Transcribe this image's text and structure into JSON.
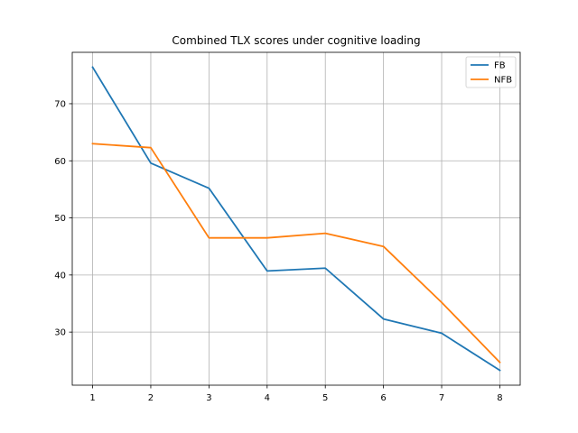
{
  "chart_data": {
    "type": "line",
    "title": "Combined TLX scores under cognitive loading",
    "xlabel": "",
    "ylabel": "",
    "x": [
      1,
      2,
      3,
      4,
      5,
      6,
      7,
      8
    ],
    "xlim": [
      0.65,
      8.35
    ],
    "ylim": [
      20.7,
      79.0
    ],
    "xticks": [
      1,
      2,
      3,
      4,
      5,
      6,
      7,
      8
    ],
    "yticks": [
      30,
      40,
      50,
      60,
      70
    ],
    "grid": true,
    "legend_position": "top-right",
    "series": [
      {
        "name": "FB",
        "color": "#1f77b4",
        "values": [
          76.4,
          59.6,
          55.2,
          40.7,
          41.2,
          32.3,
          29.8,
          23.3
        ]
      },
      {
        "name": "NFB",
        "color": "#ff7f0e",
        "values": [
          63.0,
          62.3,
          46.5,
          46.5,
          47.3,
          45.0,
          35.2,
          24.7
        ]
      }
    ]
  }
}
